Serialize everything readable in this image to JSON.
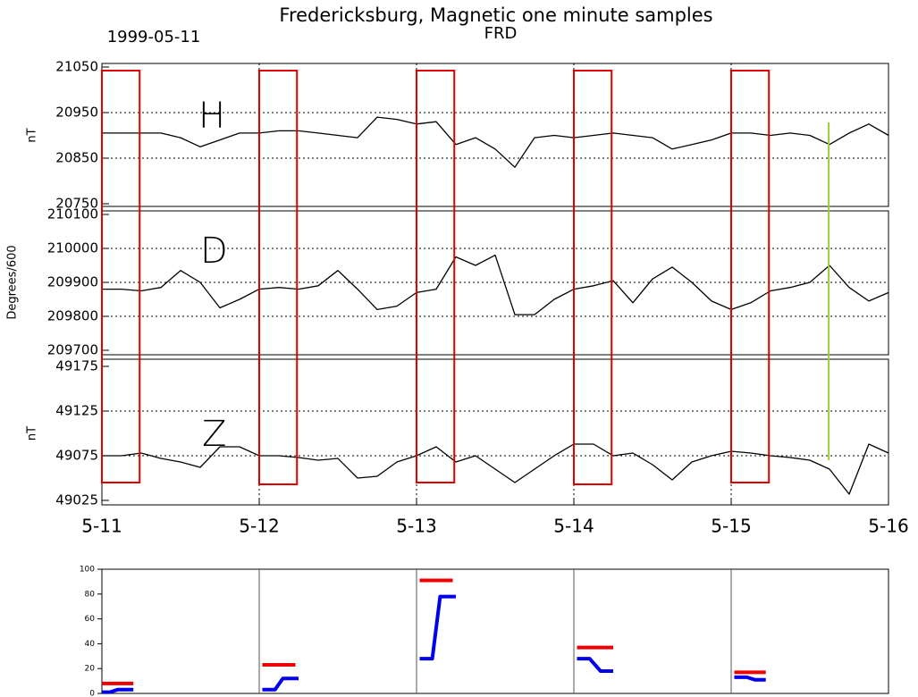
{
  "chart_data": [
    {
      "type": "panels",
      "title": "Fredericksburg, Magnetic one minute samples",
      "subtitle": "FRD",
      "date": "1999-05-11",
      "xlim": [
        0,
        5
      ],
      "xticks": [
        {
          "value": 0,
          "label": "5-11"
        },
        {
          "value": 1,
          "label": "5-12"
        },
        {
          "value": 2,
          "label": "5-13"
        },
        {
          "value": 3,
          "label": "5-14"
        },
        {
          "value": 4,
          "label": "5-15"
        },
        {
          "value": 5,
          "label": "5-16"
        }
      ],
      "x": [
        0,
        0.125,
        0.25,
        0.375,
        0.5,
        0.625,
        0.75,
        0.875,
        1,
        1.125,
        1.25,
        1.375,
        1.5,
        1.625,
        1.75,
        1.875,
        2,
        2.125,
        2.25,
        2.375,
        2.5,
        2.625,
        2.75,
        2.875,
        3,
        3.125,
        3.25,
        3.375,
        3.5,
        3.625,
        3.75,
        3.875,
        4,
        4.125,
        4.25,
        4.375,
        4.5,
        4.625,
        4.75,
        4.875,
        5
      ],
      "highlights": {
        "color": "#e00000",
        "spans": [
          [
            0,
            0.24
          ],
          [
            1,
            1.24
          ],
          [
            2,
            2.24
          ],
          [
            3,
            3.24
          ],
          [
            4,
            4.24
          ]
        ]
      },
      "marker_line": {
        "x": 4.62,
        "color": "#9acd32"
      },
      "panels": [
        {
          "ylabel": "nT",
          "annotation": "H",
          "color": "#000000",
          "ylim": [
            20750,
            21050
          ],
          "yticks": [
            20750,
            20850,
            20950,
            21050
          ],
          "values": [
            20905,
            20905,
            20905,
            20905,
            20895,
            20875,
            20890,
            20905,
            20905,
            20910,
            20910,
            20905,
            20900,
            20895,
            20940,
            20935,
            20925,
            20930,
            20880,
            20895,
            20870,
            20830,
            20895,
            20900,
            20895,
            20900,
            20905,
            20900,
            20895,
            20870,
            20880,
            20890,
            20905,
            20905,
            20900,
            20905,
            20900,
            20880,
            20905,
            20925,
            20900
          ]
        },
        {
          "ylabel": "Degrees/600",
          "annotation": "D",
          "color": "#000000",
          "ylim": [
            209700,
            210100
          ],
          "yticks": [
            209700,
            209800,
            209900,
            210000,
            210100
          ],
          "values": [
            209880,
            209880,
            209875,
            209885,
            209935,
            209900,
            209825,
            209850,
            209880,
            209885,
            209880,
            209890,
            209935,
            209880,
            209820,
            209830,
            209870,
            209880,
            209975,
            209950,
            209980,
            209805,
            209805,
            209850,
            209880,
            209890,
            209905,
            209840,
            209910,
            209945,
            209900,
            209845,
            209820,
            209840,
            209875,
            209885,
            209900,
            209950,
            209885,
            209845,
            209870
          ]
        },
        {
          "ylabel": "nT",
          "annotation": "Z",
          "color": "#000000",
          "ylim": [
            49025,
            49175
          ],
          "yticks": [
            49025,
            49075,
            49125,
            49175
          ],
          "values": [
            49075,
            49075,
            49078,
            49072,
            49068,
            49062,
            49085,
            49085,
            49075,
            49075,
            49073,
            49070,
            49072,
            49050,
            49052,
            49068,
            49075,
            49085,
            49068,
            49075,
            49060,
            49045,
            49060,
            49075,
            49088,
            49088,
            49075,
            49078,
            49065,
            49048,
            49068,
            49075,
            49080,
            49078,
            49075,
            49073,
            49070,
            49060,
            49032,
            49088,
            49078
          ]
        }
      ]
    },
    {
      "type": "line",
      "xlim": [
        0,
        5
      ],
      "ylim": [
        0,
        100
      ],
      "yticks": [
        0,
        20,
        40,
        60,
        80,
        100
      ],
      "series": [
        {
          "color": "#ee0000",
          "x": [
            0,
            0.2,
            null,
            1.02,
            1.23,
            null,
            2.02,
            2.23,
            null,
            3.02,
            3.25,
            null,
            4.02,
            4.22
          ],
          "values": [
            8,
            8,
            null,
            23,
            23,
            null,
            91,
            91,
            null,
            37,
            37,
            null,
            17,
            17
          ]
        },
        {
          "color": "#0000ee",
          "x": [
            0,
            0.05,
            0.1,
            0.2,
            null,
            1.02,
            1.1,
            1.15,
            1.25,
            null,
            2.02,
            2.1,
            2.15,
            2.25,
            null,
            3.02,
            3.1,
            3.17,
            3.25,
            null,
            4.02,
            4.1,
            4.15,
            4.22
          ],
          "values": [
            1,
            1,
            3,
            3,
            null,
            3,
            3,
            12,
            12,
            null,
            28,
            28,
            78,
            78,
            null,
            28,
            28,
            18,
            18,
            null,
            13,
            13,
            11,
            11
          ]
        }
      ]
    }
  ]
}
